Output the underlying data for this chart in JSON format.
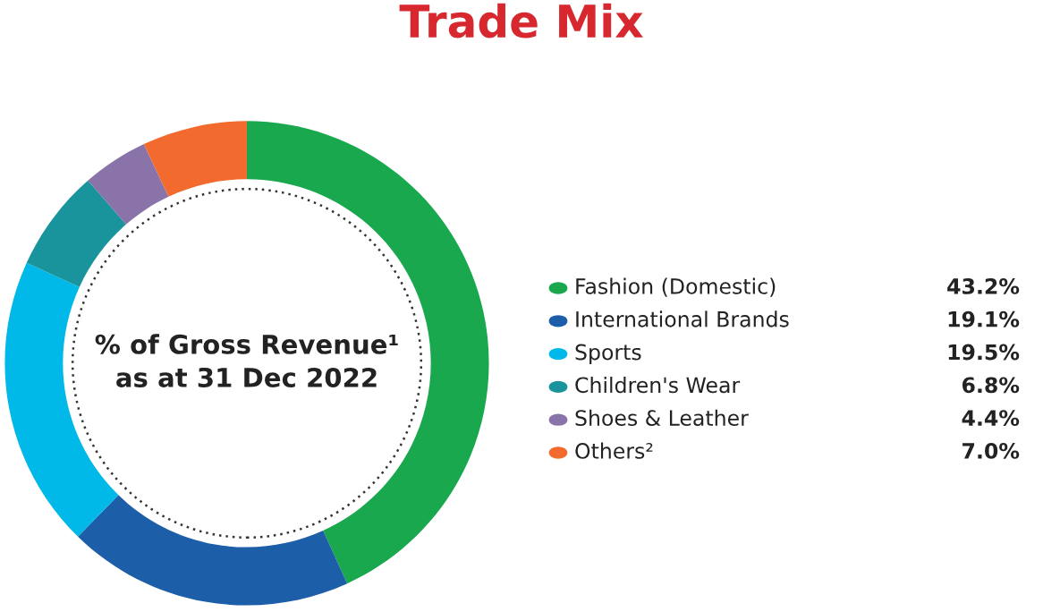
{
  "chart_data": {
    "type": "donut",
    "title": "Trade Mix",
    "annotations": [
      "% of Gross Revenue¹\nas at 31 Dec 2022"
    ],
    "categories": [
      "Fashion (Domestic)",
      "International Brands",
      "Sports",
      "Children's Wear",
      "Shoes & Leather",
      "Others²"
    ],
    "values": [
      43.2,
      19.1,
      19.5,
      6.8,
      4.4,
      7.0
    ],
    "value_labels": [
      "43.2%",
      "19.1%",
      "19.5%",
      "6.8%",
      "4.4%",
      "7.0%"
    ],
    "colors": [
      "#1aa84f",
      "#1c5ea8",
      "#00b9e8",
      "#1a949c",
      "#8a73a8",
      "#f26a2e"
    ],
    "legend": "right"
  }
}
